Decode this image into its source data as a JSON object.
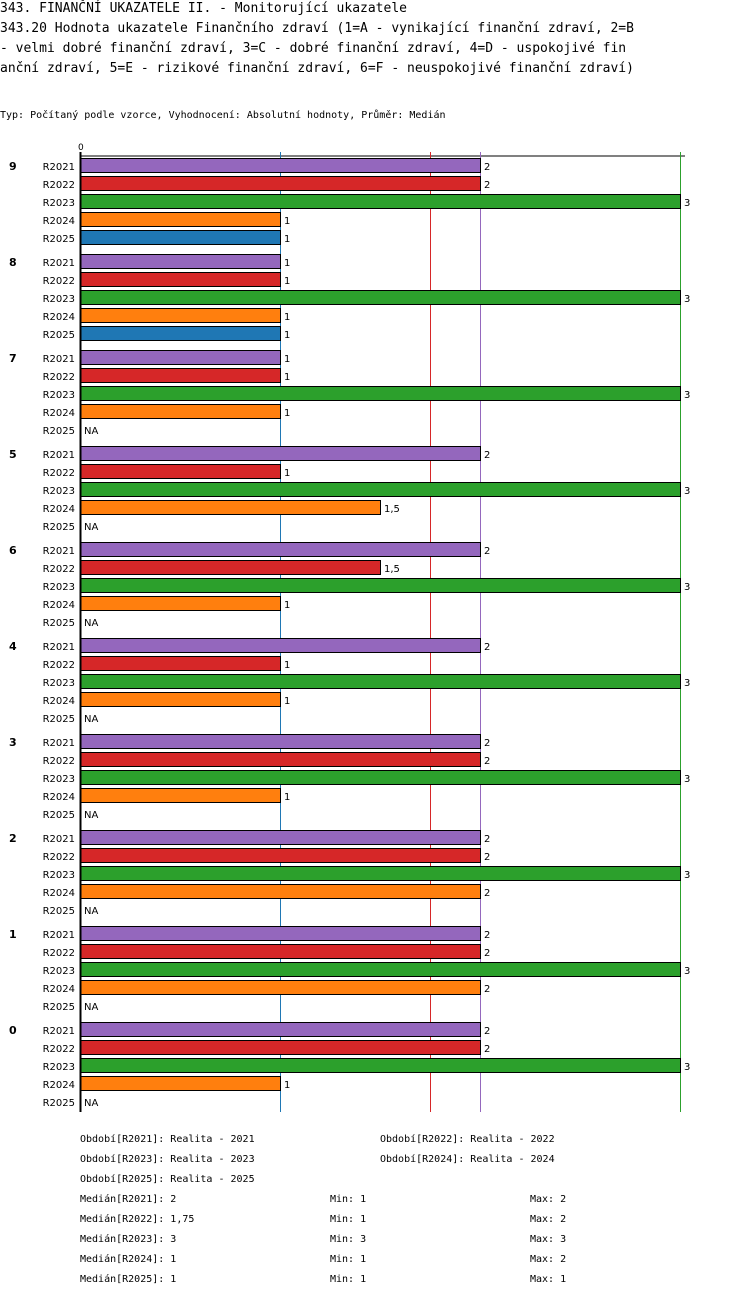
{
  "header": {
    "line1": "343. FINANČNÍ UKAZATELE II. - Monitorující ukazatele",
    "line2": "343.20 Hodnota ukazatele Finančního zdraví (1=A - vynikající finanční zdraví, 2=B",
    "line3": " - velmi dobré finanční zdraví, 3=C - dobré finanční zdraví, 4=D - uspokojivé fin",
    "line4": "anční zdraví, 5=E - rizikové finanční zdraví, 6=F - neuspokojivé finanční zdraví)",
    "type_line": "Typ: Počítaný podle vzorce, Vyhodnocení: Absolutní hodnoty, Průměr: Medián"
  },
  "chart_data": {
    "type": "bar",
    "orientation": "horizontal",
    "axis_zero_label": "0",
    "xlim": [
      0,
      3
    ],
    "series": [
      {
        "name": "R2021",
        "color": "#9467bd"
      },
      {
        "name": "R2022",
        "color": "#d62728"
      },
      {
        "name": "R2023",
        "color": "#2ca02c"
      },
      {
        "name": "R2024",
        "color": "#ff7f0e"
      },
      {
        "name": "R2025",
        "color": "#1f77b4"
      }
    ],
    "groups": [
      {
        "label": "9",
        "values": [
          2,
          2,
          3,
          1,
          1
        ],
        "labels": [
          "2",
          "2",
          "3",
          "1",
          "1"
        ]
      },
      {
        "label": "8",
        "values": [
          1,
          1,
          3,
          1,
          1
        ],
        "labels": [
          "1",
          "1",
          "3",
          "1",
          "1"
        ]
      },
      {
        "label": "7",
        "values": [
          1,
          1,
          3,
          1,
          null
        ],
        "labels": [
          "1",
          "1",
          "3",
          "1",
          "NA"
        ]
      },
      {
        "label": "5",
        "values": [
          2,
          1,
          3,
          1.5,
          null
        ],
        "labels": [
          "2",
          "1",
          "3",
          "1,5",
          "NA"
        ]
      },
      {
        "label": "6",
        "values": [
          2,
          1.5,
          3,
          1,
          null
        ],
        "labels": [
          "2",
          "1,5",
          "3",
          "1",
          "NA"
        ]
      },
      {
        "label": "4",
        "values": [
          2,
          1,
          3,
          1,
          null
        ],
        "labels": [
          "2",
          "1",
          "3",
          "1",
          "NA"
        ]
      },
      {
        "label": "3",
        "values": [
          2,
          2,
          3,
          1,
          null
        ],
        "labels": [
          "2",
          "2",
          "3",
          "1",
          "NA"
        ]
      },
      {
        "label": "2",
        "values": [
          2,
          2,
          3,
          2,
          null
        ],
        "labels": [
          "2",
          "2",
          "3",
          "2",
          "NA"
        ]
      },
      {
        "label": "1",
        "values": [
          2,
          2,
          3,
          2,
          null
        ],
        "labels": [
          "2",
          "2",
          "3",
          "2",
          "NA"
        ]
      },
      {
        "label": "0",
        "values": [
          2,
          2,
          3,
          1,
          null
        ],
        "labels": [
          "2",
          "2",
          "3",
          "1",
          "NA"
        ]
      }
    ],
    "reference_lines": [
      {
        "series": "R2025",
        "value": 1,
        "color": "#1f77b4"
      },
      {
        "series": "R2022",
        "value": 1.75,
        "color": "#d62728"
      },
      {
        "series": "R2021",
        "value": 2,
        "color": "#9467bd"
      },
      {
        "series": "R2023",
        "value": 3,
        "color": "#2ca02c"
      }
    ]
  },
  "legend": {
    "periods": [
      "Období[R2021]: Realita - 2021",
      "Období[R2022]: Realita - 2022",
      "Období[R2023]: Realita - 2023",
      "Období[R2024]: Realita - 2024",
      "Období[R2025]: Realita - 2025"
    ],
    "stats": [
      {
        "median": "Medián[R2021]: 2",
        "min": "Min: 1",
        "max": "Max: 2"
      },
      {
        "median": "Medián[R2022]: 1,75",
        "min": "Min: 1",
        "max": "Max: 2"
      },
      {
        "median": "Medián[R2023]: 3",
        "min": "Min: 3",
        "max": "Max: 3"
      },
      {
        "median": "Medián[R2024]: 1",
        "min": "Min: 1",
        "max": "Max: 2"
      },
      {
        "median": "Medián[R2025]: 1",
        "min": "Min: 1",
        "max": "Max: 1"
      }
    ]
  }
}
